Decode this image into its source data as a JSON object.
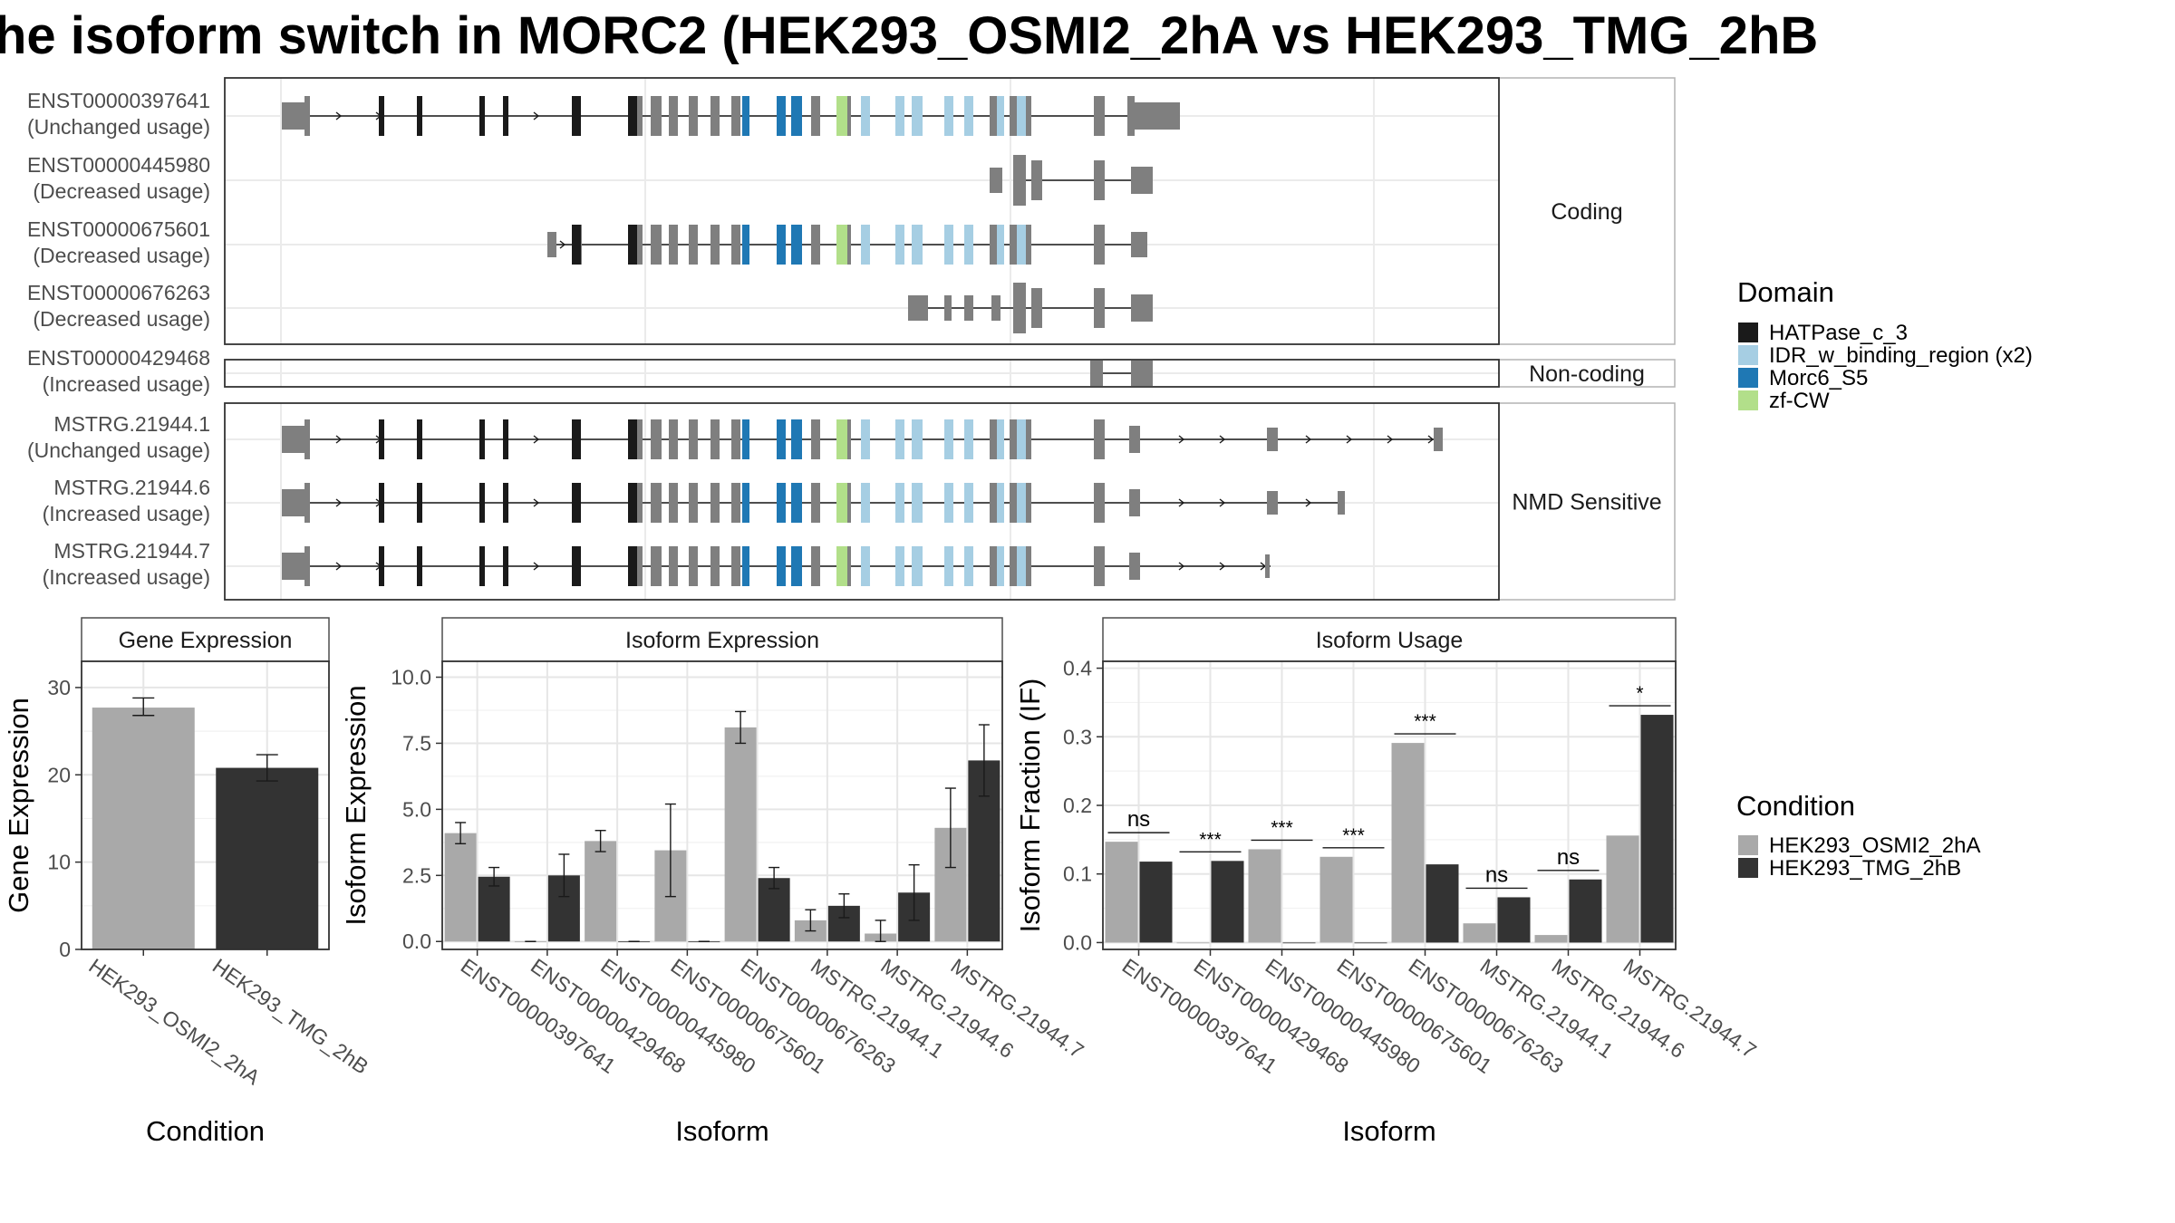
{
  "title": "he isoform switch in MORC2 (HEK293_OSMI2_2hA vs HEK293_TMG_2hB",
  "colors": {
    "HATPase_c_3": "#1a1a1a",
    "IDR_w_binding_region (x2)": "#a6cee3",
    "Morc6_S5": "#1f78b4",
    "zf-CW": "#b2df8a",
    "exon": "#7f7f7f",
    "cond_a": "#a9a9a9",
    "cond_b": "#333333"
  },
  "structure": {
    "transcripts": [
      {
        "id": "ENST00000397641",
        "usage": "(Unchanged usage)",
        "group": "Coding"
      },
      {
        "id": "ENST00000445980",
        "usage": "(Decreased usage)",
        "group": "Coding"
      },
      {
        "id": "ENST00000675601",
        "usage": "(Decreased usage)",
        "group": "Coding"
      },
      {
        "id": "ENST00000676263",
        "usage": "(Decreased usage)",
        "group": "Coding"
      },
      {
        "id": "ENST00000429468",
        "usage": "(Increased usage)",
        "group": "Non-coding"
      },
      {
        "id": "MSTRG.21944.1",
        "usage": "(Unchanged usage)",
        "group": "NMD Sensitive"
      },
      {
        "id": "MSTRG.21944.6",
        "usage": "(Increased usage)",
        "group": "NMD Sensitive"
      },
      {
        "id": "MSTRG.21944.7",
        "usage": "(Increased usage)",
        "group": "NMD Sensitive"
      }
    ],
    "groups": [
      "Coding",
      "Non-coding",
      "NMD Sensitive"
    ]
  },
  "legend_domain": {
    "title": "Domain",
    "items": [
      "HATPase_c_3",
      "IDR_w_binding_region (x2)",
      "Morc6_S5",
      "zf-CW"
    ]
  },
  "legend_condition": {
    "title": "Condition",
    "items": [
      "HEK293_OSMI2_2hA",
      "HEK293_TMG_2hB"
    ]
  },
  "chart_data": [
    {
      "type": "bar",
      "title": "Gene Expression",
      "xlabel": "Condition",
      "ylabel": "Gene Expression",
      "categories": [
        "HEK293_OSMI2_2hA",
        "HEK293_TMG_2hB"
      ],
      "values": [
        27.7,
        20.8
      ],
      "error_low": [
        26.8,
        19.3
      ],
      "error_high": [
        28.8,
        22.3
      ],
      "ylim": [
        0,
        33
      ],
      "yticks": [
        0,
        10,
        20,
        30
      ]
    },
    {
      "type": "bar",
      "title": "Isoform Expression",
      "xlabel": "Isoform",
      "ylabel": "Isoform Expression",
      "categories": [
        "ENST00000397641",
        "ENST00000429468",
        "ENST00000445980",
        "ENST00000675601",
        "ENST00000676263",
        "MSTRG.21944.1",
        "MSTRG.21944.6",
        "MSTRG.21944.7"
      ],
      "series": [
        {
          "name": "HEK293_OSMI2_2hA",
          "values": [
            4.1,
            0,
            3.8,
            3.45,
            8.1,
            0.8,
            0.3,
            4.3
          ],
          "error_low": [
            3.7,
            0,
            3.4,
            1.7,
            7.5,
            0.4,
            0.0,
            2.8
          ],
          "error_high": [
            4.5,
            0,
            4.2,
            5.2,
            8.7,
            1.2,
            0.8,
            5.8
          ]
        },
        {
          "name": "HEK293_TMG_2hB",
          "values": [
            2.45,
            2.5,
            0,
            0,
            2.4,
            1.35,
            1.85,
            6.85
          ],
          "error_low": [
            2.1,
            1.7,
            0,
            0,
            2.0,
            0.9,
            0.8,
            5.5
          ],
          "error_high": [
            2.8,
            3.3,
            0,
            0,
            2.8,
            1.8,
            2.9,
            8.2
          ]
        }
      ],
      "ylim": [
        -0.3,
        10.6
      ],
      "yticks": [
        0.0,
        2.5,
        5.0,
        7.5,
        10.0
      ],
      "ytick_labels": [
        "0.0",
        "2.5",
        "5.0",
        "7.5",
        "10.0"
      ]
    },
    {
      "type": "bar",
      "title": "Isoform Usage",
      "xlabel": "Isoform",
      "ylabel": "Isoform Fraction (IF)",
      "categories": [
        "ENST00000397641",
        "ENST00000429468",
        "ENST00000445980",
        "ENST00000675601",
        "ENST00000676263",
        "MSTRG.21944.1",
        "MSTRG.21944.6",
        "MSTRG.21944.7"
      ],
      "series": [
        {
          "name": "HEK293_OSMI2_2hA",
          "values": [
            0.147,
            0,
            0.136,
            0.125,
            0.291,
            0.028,
            0.011,
            0.156
          ]
        },
        {
          "name": "HEK293_TMG_2hB",
          "values": [
            0.118,
            0.119,
            0,
            0,
            0.114,
            0.066,
            0.092,
            0.332
          ]
        }
      ],
      "significance": [
        "ns",
        "***",
        "***",
        "***",
        "***",
        "ns",
        "ns",
        "*"
      ],
      "ylim": [
        -0.01,
        0.41
      ],
      "yticks": [
        0.0,
        0.1,
        0.2,
        0.3,
        0.4
      ],
      "ytick_labels": [
        "0.0",
        "0.1",
        "0.2",
        "0.3",
        "0.4"
      ]
    }
  ]
}
